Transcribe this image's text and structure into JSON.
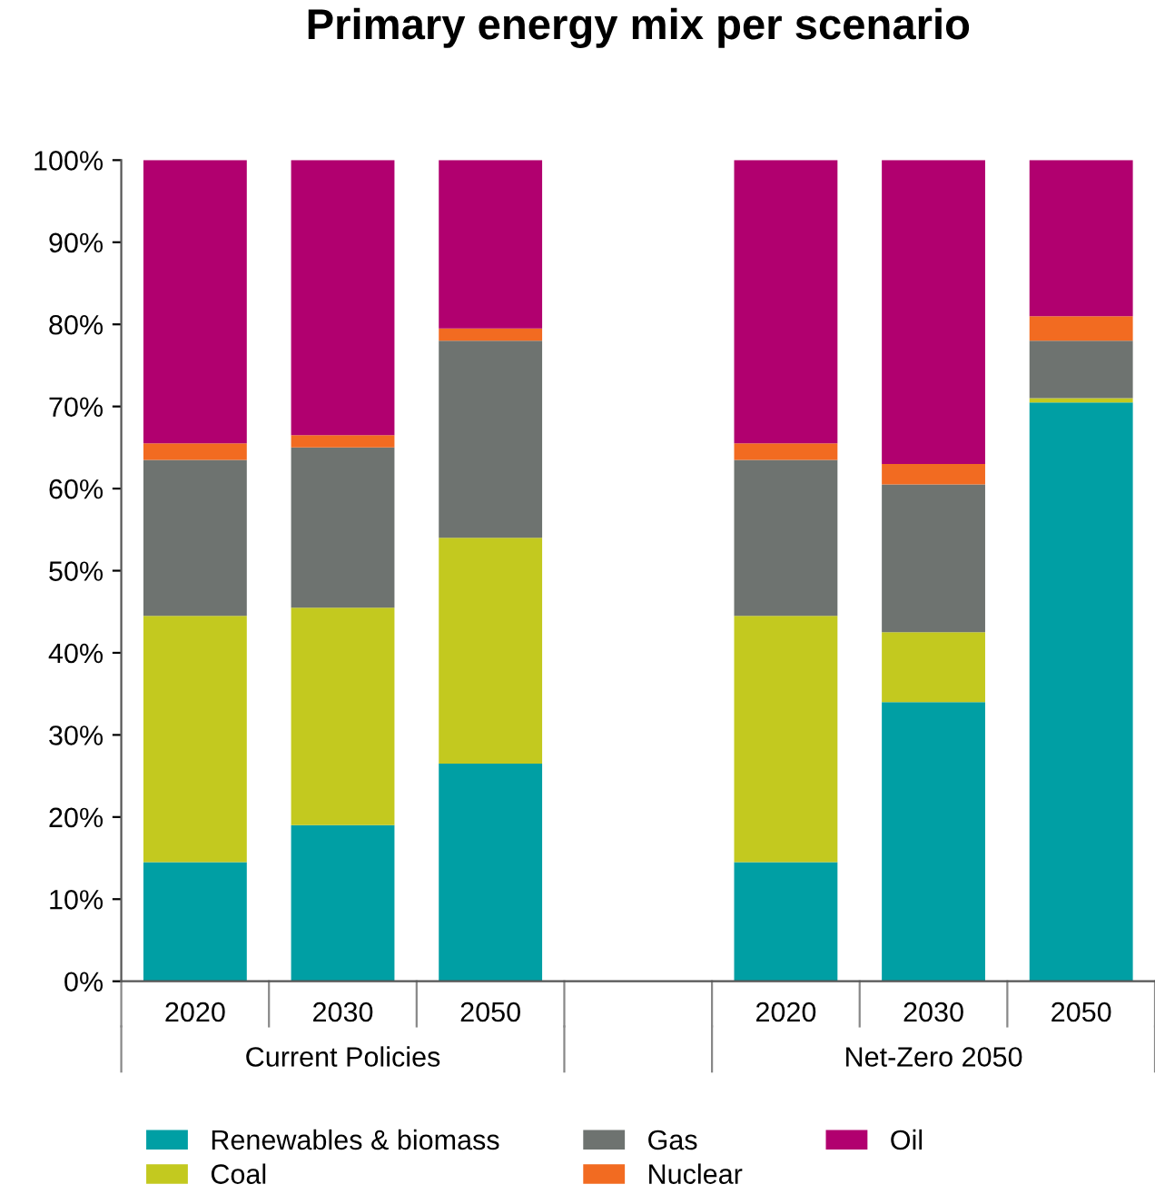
{
  "chart_data": {
    "type": "bar",
    "title": "Primary energy mix per scenario",
    "stacked": true,
    "categories": [
      "2020",
      "2030",
      "2050",
      null,
      "2020",
      "2030",
      "2050"
    ],
    "series": [
      {
        "name": "Renewables & biomass",
        "color": "#009fa4",
        "values": [
          14.5,
          19,
          26.5,
          null,
          14.5,
          34,
          70.5
        ]
      },
      {
        "name": "Coal",
        "color": "#c3c91f",
        "values": [
          30,
          26.5,
          27.5,
          null,
          30,
          8.5,
          0.5
        ]
      },
      {
        "name": "Gas",
        "color": "#6e7370",
        "values": [
          19,
          19.5,
          24,
          null,
          19,
          18,
          7
        ]
      },
      {
        "name": "Nuclear",
        "color": "#f26b21",
        "values": [
          2,
          1.5,
          1.5,
          null,
          2,
          2.5,
          3
        ]
      },
      {
        "name": "Oil",
        "color": "#b1006f",
        "values": [
          34.5,
          33.5,
          20.5,
          null,
          34.5,
          37,
          19
        ]
      }
    ],
    "annotations": [
      "Current Policies",
      "Net-Zero 2050"
    ],
    "ylim": [
      0,
      100
    ],
    "yticks": [
      {
        "value": 0,
        "label": "0%"
      },
      {
        "value": 10,
        "label": "10%"
      },
      {
        "value": 20,
        "label": "20%"
      },
      {
        "value": 30,
        "label": "30%"
      },
      {
        "value": 40,
        "label": "40%"
      },
      {
        "value": 50,
        "label": "50%"
      },
      {
        "value": 60,
        "label": "60%"
      },
      {
        "value": 70,
        "label": "70%"
      },
      {
        "value": 80,
        "label": "80%"
      },
      {
        "value": 90,
        "label": "90%"
      },
      {
        "value": 100,
        "label": "100%"
      }
    ],
    "grid": false,
    "legend": "bottom"
  }
}
